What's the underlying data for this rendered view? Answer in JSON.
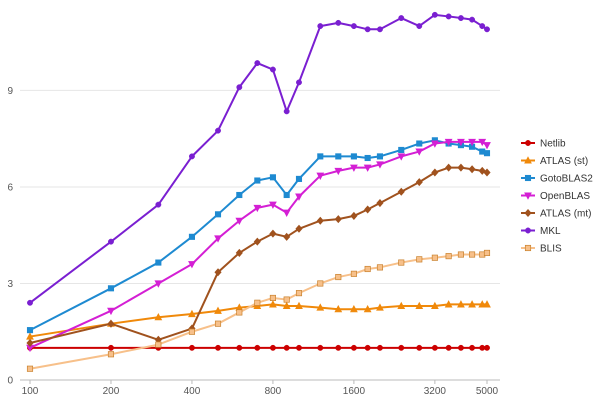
{
  "chart_data": {
    "type": "line",
    "xscale": "log",
    "x_ticks": [
      100,
      200,
      400,
      800,
      1600,
      3200,
      5000
    ],
    "x_tick_labels": [
      "100",
      "200",
      "400",
      "800",
      "1600",
      "3200",
      "5000"
    ],
    "y_ticks": [
      0,
      3,
      6,
      9
    ],
    "y_tick_labels": [
      "0",
      "3",
      "6",
      "9"
    ],
    "ylim": [
      0,
      11.5
    ],
    "xlim": [
      100,
      5000
    ],
    "grid": "horizontal",
    "legend_position": "right",
    "x": [
      100,
      200,
      300,
      400,
      500,
      600,
      700,
      800,
      900,
      1000,
      1200,
      1400,
      1600,
      1800,
      2000,
      2400,
      2800,
      3200,
      3600,
      4000,
      4400,
      4800,
      5000
    ],
    "series": [
      {
        "name": "Netlib",
        "color": "#cc0000",
        "marker": "circle",
        "values": [
          1.0,
          1.0,
          1.0,
          1.0,
          1.0,
          1.0,
          1.0,
          1.0,
          1.0,
          1.0,
          1.0,
          1.0,
          1.0,
          1.0,
          1.0,
          1.0,
          1.0,
          1.0,
          1.0,
          1.0,
          1.0,
          1.0,
          1.0
        ]
      },
      {
        "name": "ATLAS (st)",
        "color": "#f0890a",
        "marker": "triangle-up",
        "values": [
          1.35,
          1.75,
          1.95,
          2.05,
          2.15,
          2.25,
          2.3,
          2.35,
          2.3,
          2.3,
          2.25,
          2.2,
          2.2,
          2.2,
          2.25,
          2.3,
          2.3,
          2.3,
          2.35,
          2.35,
          2.35,
          2.35,
          2.35
        ]
      },
      {
        "name": "GotoBLAS2",
        "color": "#1e8ad1",
        "marker": "square",
        "values": [
          1.55,
          2.85,
          3.65,
          4.45,
          5.15,
          5.75,
          6.2,
          6.3,
          5.75,
          6.25,
          6.95,
          6.95,
          6.95,
          6.9,
          6.95,
          7.15,
          7.35,
          7.45,
          7.35,
          7.3,
          7.25,
          7.1,
          7.05
        ]
      },
      {
        "name": "OpenBLAS",
        "color": "#d41fd4",
        "marker": "triangle-down",
        "values": [
          1.0,
          2.15,
          3.0,
          3.6,
          4.4,
          4.95,
          5.35,
          5.45,
          5.2,
          5.7,
          6.35,
          6.5,
          6.6,
          6.6,
          6.7,
          6.95,
          7.1,
          7.35,
          7.4,
          7.4,
          7.4,
          7.4,
          7.3
        ]
      },
      {
        "name": "ATLAS (mt)",
        "color": "#a0521e",
        "marker": "diamond",
        "values": [
          1.15,
          1.75,
          1.25,
          1.6,
          3.35,
          3.95,
          4.3,
          4.55,
          4.45,
          4.7,
          4.95,
          5.0,
          5.1,
          5.3,
          5.5,
          5.85,
          6.15,
          6.45,
          6.6,
          6.6,
          6.55,
          6.5,
          6.45
        ]
      },
      {
        "name": "MKL",
        "color": "#7a1fd1",
        "marker": "circle",
        "values": [
          2.4,
          4.3,
          5.45,
          6.95,
          7.75,
          9.1,
          9.85,
          9.65,
          8.35,
          9.25,
          11.0,
          11.1,
          11.0,
          10.9,
          10.9,
          11.25,
          11.0,
          11.35,
          11.3,
          11.25,
          11.2,
          11.0,
          10.9
        ]
      },
      {
        "name": "BLIS",
        "color": "#f7c08a",
        "stroke_color": "#c9812d",
        "marker": "square",
        "values": [
          0.35,
          0.8,
          1.1,
          1.5,
          1.75,
          2.1,
          2.4,
          2.55,
          2.5,
          2.7,
          3.0,
          3.2,
          3.3,
          3.45,
          3.5,
          3.65,
          3.75,
          3.8,
          3.85,
          3.9,
          3.9,
          3.9,
          3.95
        ]
      }
    ]
  }
}
